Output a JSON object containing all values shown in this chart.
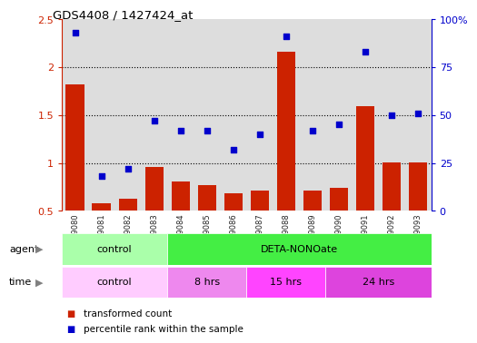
{
  "title": "GDS4408 / 1427424_at",
  "samples": [
    "GSM549080",
    "GSM549081",
    "GSM549082",
    "GSM549083",
    "GSM549084",
    "GSM549085",
    "GSM549086",
    "GSM549087",
    "GSM549088",
    "GSM549089",
    "GSM549090",
    "GSM549091",
    "GSM549092",
    "GSM549093"
  ],
  "bar_values": [
    1.82,
    0.58,
    0.63,
    0.96,
    0.81,
    0.77,
    0.68,
    0.71,
    2.16,
    0.71,
    0.74,
    1.59,
    1.01,
    1.01
  ],
  "dot_values_pct": [
    93,
    18,
    22,
    47,
    42,
    42,
    32,
    40,
    91,
    42,
    45,
    83,
    50,
    51
  ],
  "ylim_left": [
    0.5,
    2.5
  ],
  "ylim_right": [
    0,
    100
  ],
  "yticks_left": [
    0.5,
    1.0,
    1.5,
    2.0,
    2.5
  ],
  "ytick_labels_left": [
    "0.5",
    "1",
    "1.5",
    "2",
    "2.5"
  ],
  "yticks_right": [
    0,
    25,
    50,
    75,
    100
  ],
  "ytick_labels_right": [
    "0",
    "25",
    "50",
    "75",
    "100%"
  ],
  "bar_color": "#CC2200",
  "dot_color": "#0000CC",
  "bg_col_color": "#DDDDDD",
  "agent_groups": [
    {
      "label": "control",
      "start": 0,
      "end": 4,
      "color": "#AAFFAA"
    },
    {
      "label": "DETA-NONOate",
      "start": 4,
      "end": 14,
      "color": "#44EE44"
    }
  ],
  "time_groups": [
    {
      "label": "control",
      "start": 0,
      "end": 4,
      "color": "#FFCCFF"
    },
    {
      "label": "8 hrs",
      "start": 4,
      "end": 7,
      "color": "#EE88EE"
    },
    {
      "label": "15 hrs",
      "start": 7,
      "end": 10,
      "color": "#FF44FF"
    },
    {
      "label": "24 hrs",
      "start": 10,
      "end": 14,
      "color": "#DD44DD"
    }
  ],
  "legend_bar_label": "transformed count",
  "legend_dot_label": "percentile rank within the sample",
  "dotted_gridlines": [
    1.0,
    1.5,
    2.0
  ]
}
